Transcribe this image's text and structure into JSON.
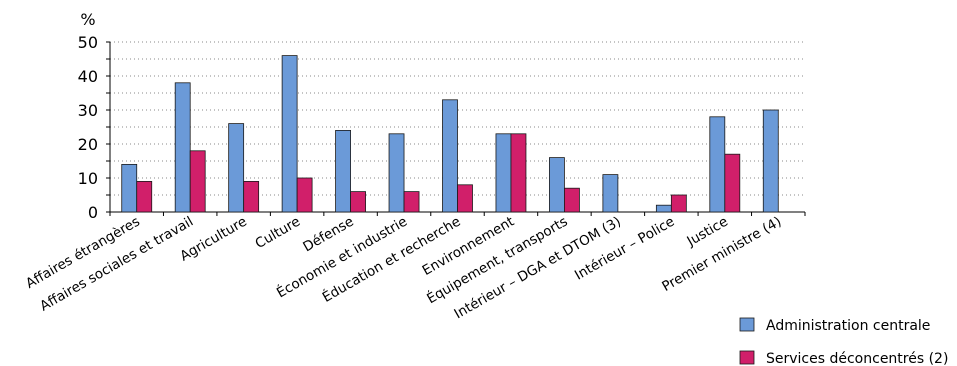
{
  "chart_data": {
    "type": "bar",
    "ylabel": "%",
    "ylim": [
      0,
      50
    ],
    "yticks": [
      "0",
      "10",
      "20",
      "30",
      "40",
      "50"
    ],
    "grid": true,
    "legend_position": "bottom-right",
    "categories": [
      "Affaires étrangères",
      "Affaires sociales et travail",
      "Agriculture",
      "Culture",
      "Défense",
      "Économie et industrie",
      "Éducation et recherche",
      "Environnement",
      "Équipement, transports",
      "Intérieur – DGA et DTOM (3)",
      "Intérieur – Police",
      "Justice",
      "Premier ministre (4)"
    ],
    "series": [
      {
        "name": "Administration centrale",
        "color": "#6b9ad8",
        "values": [
          14,
          38,
          26,
          46,
          24,
          23,
          33,
          23,
          16,
          11,
          2,
          28,
          30
        ]
      },
      {
        "name": "Services déconcentrés (2)",
        "color": "#d11f6a",
        "values": [
          9,
          18,
          9,
          10,
          6,
          6,
          8,
          23,
          7,
          null,
          5,
          17,
          null
        ]
      }
    ]
  }
}
